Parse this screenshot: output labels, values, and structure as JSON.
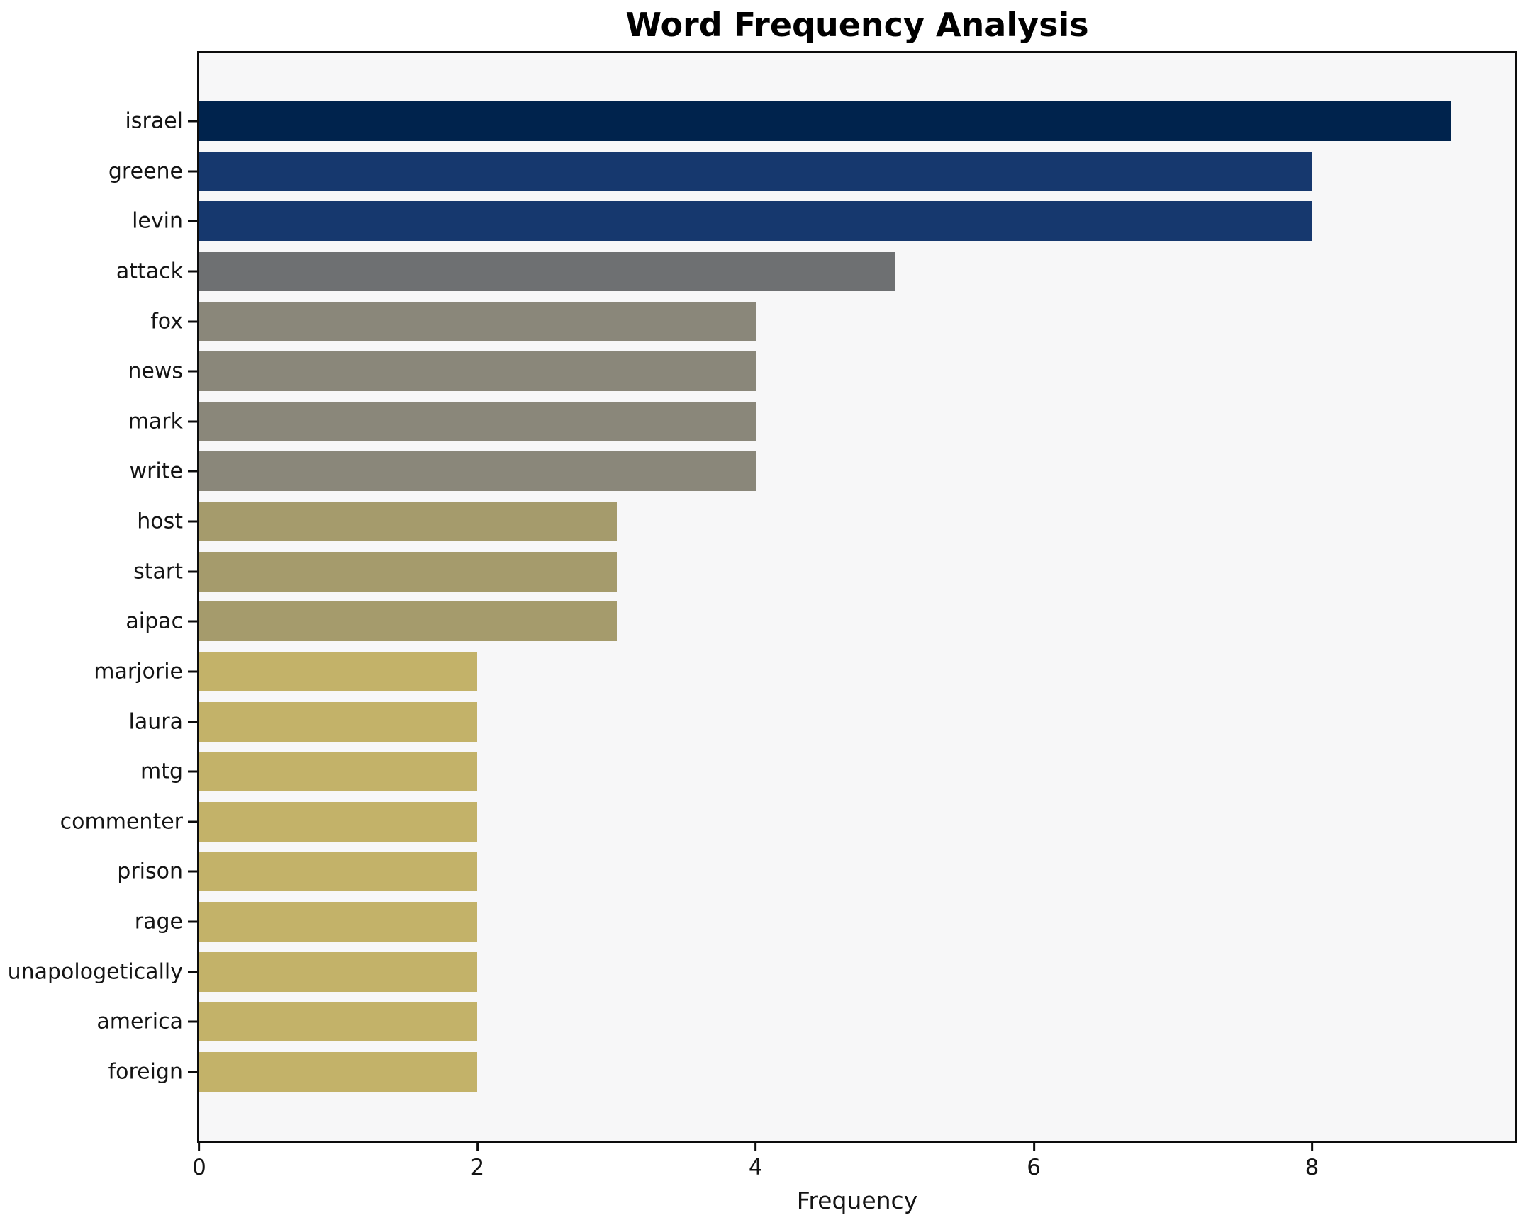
{
  "chart_data": {
    "type": "bar",
    "orientation": "horizontal",
    "title": "Word Frequency Analysis",
    "xlabel": "Frequency",
    "ylabel": "",
    "grid": false,
    "legend": null,
    "plot_background": "#f7f7f8",
    "spine_color": "#0c0c0c",
    "xlim": [
      0,
      9.46
    ],
    "x_ticks": [
      0,
      2,
      4,
      6,
      8
    ],
    "categories": [
      "israel",
      "greene",
      "levin",
      "attack",
      "fox",
      "news",
      "mark",
      "write",
      "host",
      "start",
      "aipac",
      "marjorie",
      "laura",
      "mtg",
      "commenter",
      "prison",
      "rage",
      "unapologetically",
      "america",
      "foreign"
    ],
    "values": [
      9,
      8,
      8,
      5,
      4,
      4,
      4,
      4,
      3,
      3,
      3,
      2,
      2,
      2,
      2,
      2,
      2,
      2,
      2,
      2
    ],
    "bar_colors": [
      "#00234d",
      "#16386e",
      "#16386e",
      "#6e7072",
      "#8a877a",
      "#8a877a",
      "#8a877a",
      "#8a877a",
      "#a59b6c",
      "#a59b6c",
      "#a59b6c",
      "#c3b269",
      "#c3b269",
      "#c3b269",
      "#c3b269",
      "#c3b269",
      "#c3b269",
      "#c3b269",
      "#c3b269",
      "#c3b269"
    ]
  }
}
